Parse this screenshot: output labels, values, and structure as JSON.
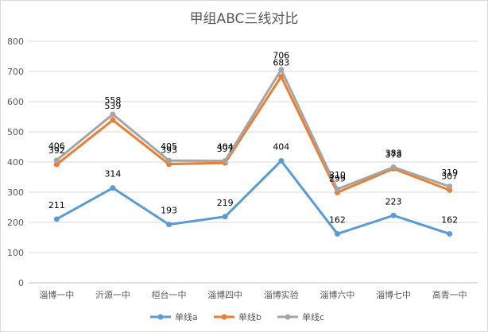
{
  "chart_data": {
    "type": "line",
    "title": "甲组ABC三线对比",
    "categories": [
      "淄博一中",
      "沂源一中",
      "桓台一中",
      "淄博四中",
      "淄博实验",
      "淄博六中",
      "淄博七中",
      "高青一中"
    ],
    "ylim": [
      0,
      800
    ],
    "yticks": [
      0,
      100,
      200,
      300,
      400,
      500,
      600,
      700,
      800
    ],
    "grid": true,
    "legend_position": "bottom",
    "series": [
      {
        "name": "单线a",
        "color": "#5b9bd5",
        "values": [
          211,
          314,
          193,
          219,
          404,
          162,
          223,
          162
        ]
      },
      {
        "name": "单线b",
        "color": "#ed7d31",
        "values": [
          392,
          539,
          393,
          397,
          683,
          299,
          378,
          307
        ]
      },
      {
        "name": "单线c",
        "color": "#a5a5a5",
        "values": [
          406,
          558,
          405,
          404,
          706,
          310,
          383,
          319
        ]
      }
    ]
  }
}
